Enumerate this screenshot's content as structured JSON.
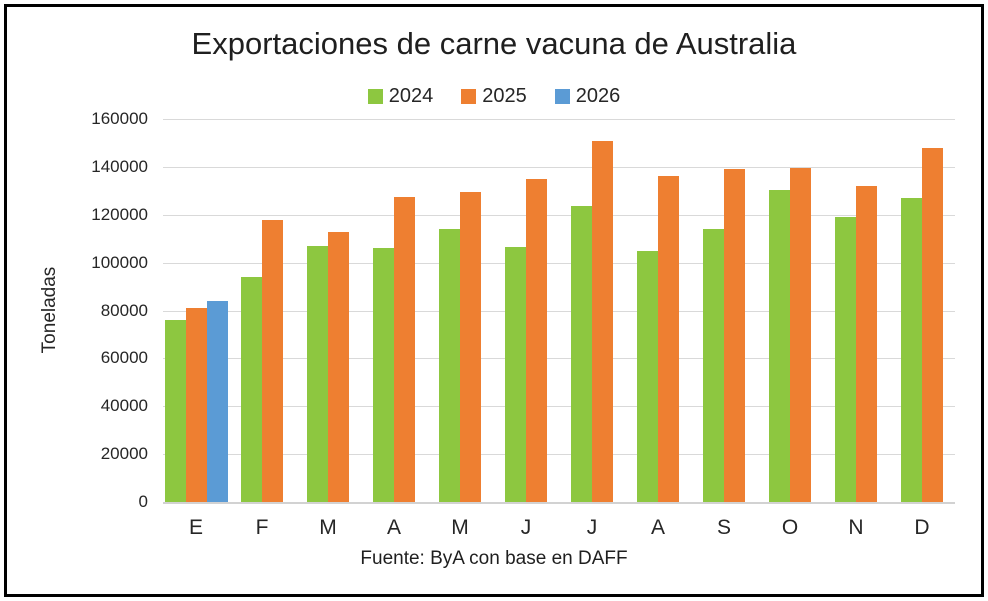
{
  "chart_data": {
    "type": "bar",
    "title": "Exportaciones de carne vacuna de Australia",
    "ylabel": "Toneladas",
    "xlabel": "",
    "source_note": "Fuente: ByA con base en DAFF",
    "categories": [
      "E",
      "F",
      "M",
      "A",
      "M",
      "J",
      "J",
      "A",
      "S",
      "O",
      "N",
      "D"
    ],
    "series": [
      {
        "name": "2024",
        "color": "#8dc740",
        "values": [
          76000,
          94000,
          107000,
          106000,
          114000,
          106500,
          123500,
          105000,
          114000,
          130500,
          119000,
          127000
        ]
      },
      {
        "name": "2025",
        "color": "#ee7f31",
        "values": [
          81000,
          118000,
          113000,
          127500,
          129500,
          135000,
          151000,
          136000,
          139000,
          139500,
          132000,
          148000
        ]
      },
      {
        "name": "2026",
        "color": "#5b9bd5",
        "values": [
          84000,
          null,
          null,
          null,
          null,
          null,
          null,
          null,
          null,
          null,
          null,
          null
        ]
      }
    ],
    "ylim": [
      0,
      160000
    ],
    "ytick_step": 20000,
    "grid": true,
    "legend_position": "top"
  },
  "colors": {
    "gridline": "#d9d9d9",
    "axis_line": "#d2d2d2",
    "text": "#262626",
    "frame_border": "#000000",
    "background": "#ffffff"
  }
}
